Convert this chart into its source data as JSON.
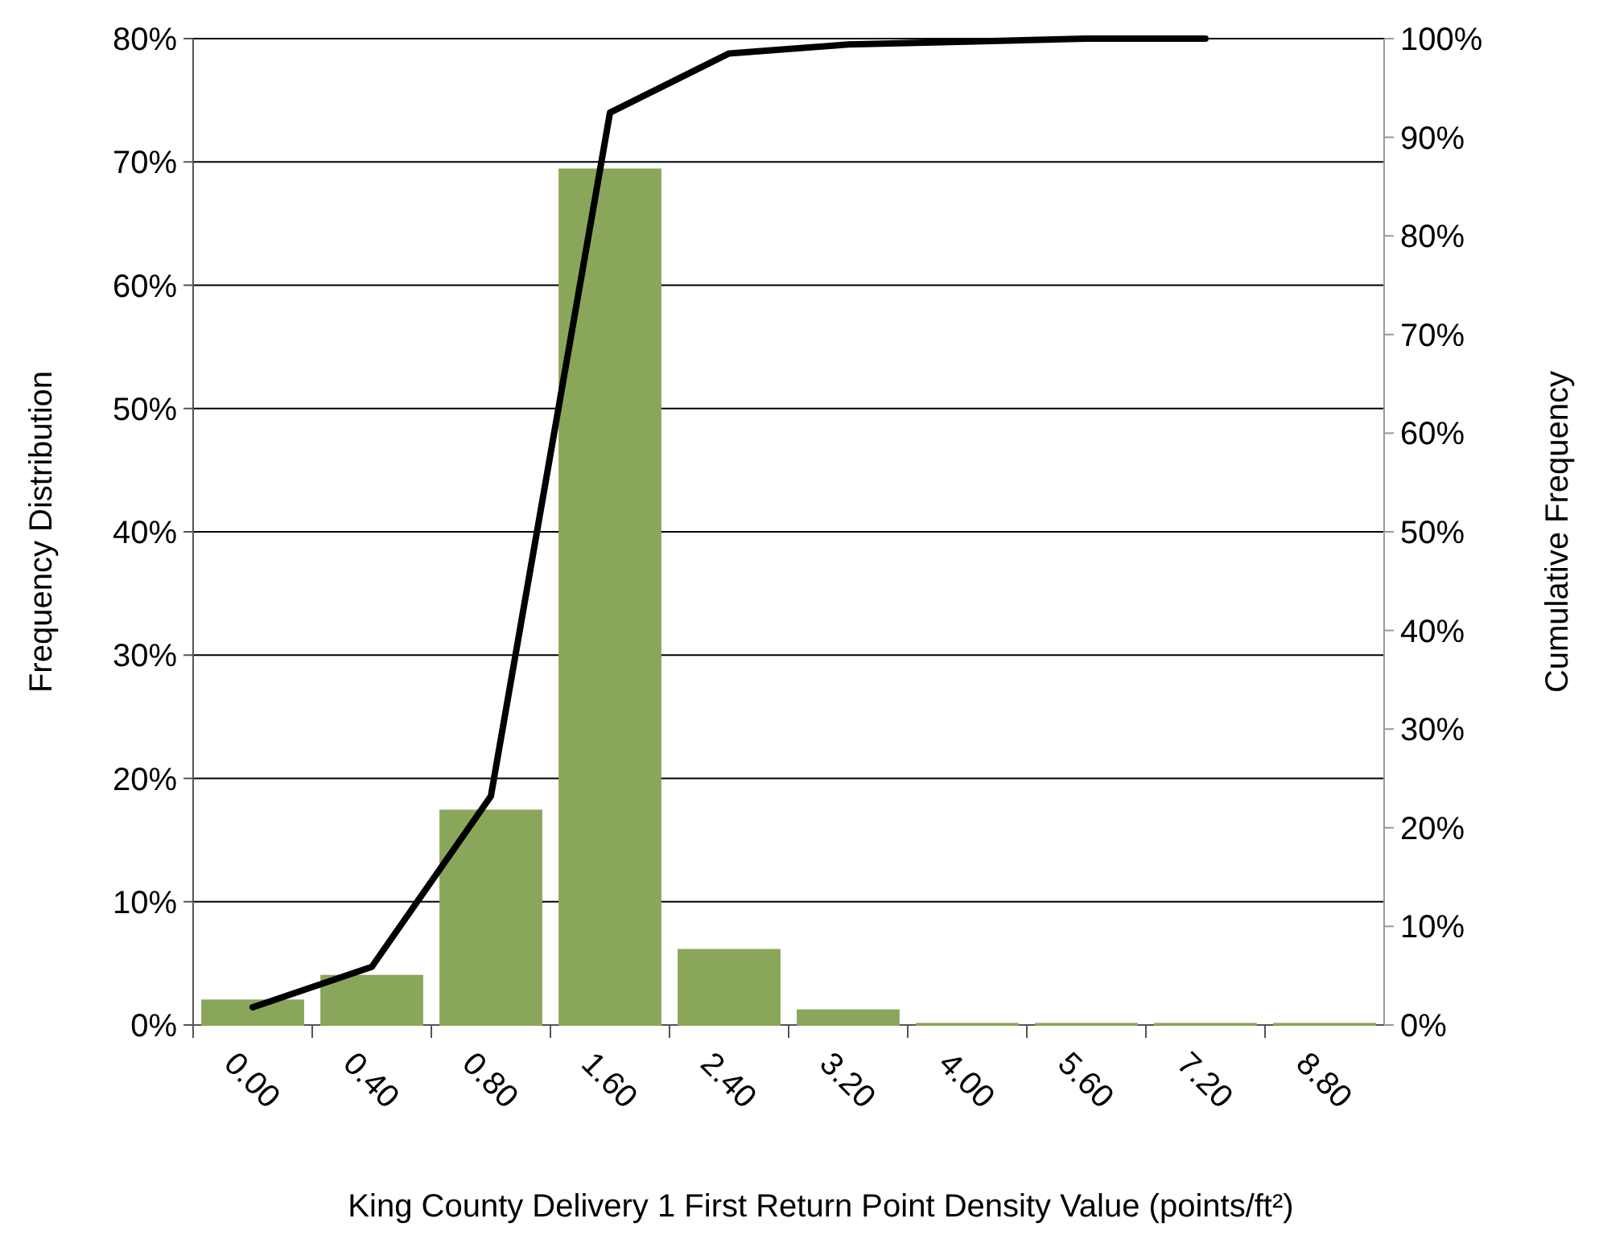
{
  "chart_data": {
    "type": "bar",
    "xlabel": "King County Delivery 1 First Return Point Density Value (points/ft²)",
    "ylabel": "Frequency Distribution",
    "y2label": "Cumulative Frequency",
    "categories": [
      "0.00",
      "0.40",
      "0.80",
      "1.60",
      "2.40",
      "3.20",
      "4.00",
      "5.60",
      "7.20",
      "8.80"
    ],
    "series": [
      {
        "color": "#8aa65a",
        "values": [
          2.0,
          4.0,
          17.4,
          69.4,
          6.1,
          1.2,
          0.1,
          0.1,
          0.1,
          0.1
        ]
      },
      {
        "type": "line",
        "axis": "y2",
        "color": "#000000",
        "values": [
          1.8,
          5.9,
          23.2,
          92.5,
          98.5,
          99.4,
          99.7,
          100,
          100,
          null
        ]
      }
    ],
    "ylim": [
      0,
      80
    ],
    "yticks": [
      {
        "value": 0,
        "label": "0%"
      },
      {
        "value": 10,
        "label": "10%"
      },
      {
        "value": 20,
        "label": "20%"
      },
      {
        "value": 30,
        "label": "30%"
      },
      {
        "value": 40,
        "label": "40%"
      },
      {
        "value": 50,
        "label": "50%"
      },
      {
        "value": 60,
        "label": "60%"
      },
      {
        "value": 70,
        "label": "70%"
      },
      {
        "value": 80,
        "label": "80%"
      }
    ],
    "y2lim": [
      0,
      100
    ],
    "y2ticks": [
      {
        "value": 0,
        "label": "0%"
      },
      {
        "value": 10,
        "label": "10%"
      },
      {
        "value": 20,
        "label": "20%"
      },
      {
        "value": 30,
        "label": "30%"
      },
      {
        "value": 40,
        "label": "40%"
      },
      {
        "value": 50,
        "label": "50%"
      },
      {
        "value": 60,
        "label": "60%"
      },
      {
        "value": 70,
        "label": "70%"
      },
      {
        "value": 80,
        "label": "80%"
      },
      {
        "value": 90,
        "label": "90%"
      },
      {
        "value": 100,
        "label": "100%"
      }
    ],
    "grid": "y",
    "marker": "none",
    "line_style": "solid"
  }
}
